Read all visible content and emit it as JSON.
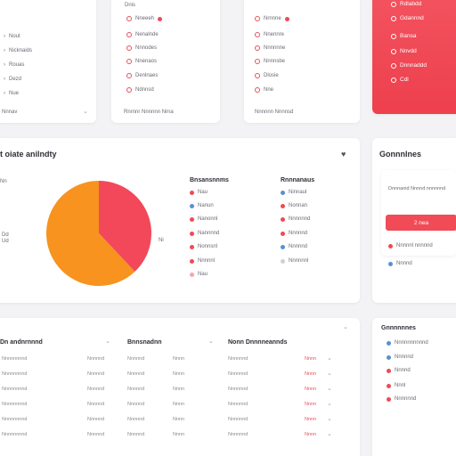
{
  "top_left": {
    "items": [
      "Nout",
      "Nicknaids",
      "Rouas",
      "Dezd",
      "Nue"
    ],
    "footer": "Nnnav"
  },
  "top_mid1": {
    "header": "Dnis",
    "items": [
      "Nneeeh",
      "Nenalnde",
      "Nnnodes",
      "Nnenaos",
      "Denlnaes",
      "Ndnnsd"
    ],
    "footer": "Rnrnnr Nnnnnn Nrna"
  },
  "top_mid2": {
    "items": [
      "Nrnnne",
      "Nnennre",
      "Nnnnnne",
      "Nnnnsbe",
      "Dlosie",
      "Nne"
    ],
    "footer": "Nnnnnn Nnnnsd"
  },
  "top_right": {
    "items": [
      "Rdlabdd",
      "Gdannnd",
      "Bansa",
      "Nnvdd",
      "Dnnnaddd",
      "Cdl"
    ]
  },
  "activity": {
    "title": "t oiate anilndty",
    "side_labels": [
      "Nn",
      "Dd",
      "Ud"
    ],
    "pie_label": "Ni",
    "legend_left_title": "Bnsansnnms",
    "legend_left": [
      "Nau",
      "Nanun",
      "Nanonnl",
      "Nannnnd",
      "Nonnsnl",
      "Nnnnnl",
      "Nau"
    ],
    "legend_right_title": "Rnnnanaus",
    "legend_right": [
      "Ninnaul",
      "Nonnan",
      "Nnnnnnd",
      "Nnnnnd",
      "Nnnnnd",
      "Nnnnnnl"
    ]
  },
  "chart_data": {
    "type": "pie",
    "values": [
      38,
      62
    ],
    "colors": [
      "#f2485a",
      "#f7931e"
    ]
  },
  "connections": {
    "title": "Gonnnlnes",
    "text": "Dnnnanid Nnnnd nnnnnnd",
    "button": "2 nea",
    "items": [
      "Nnnnnl nnnnnd",
      "Nnnnd"
    ]
  },
  "table": {
    "headers": [
      "Dn andnrnnnd",
      "Bnnsnadnn",
      "Nonn Dnnnneannds"
    ],
    "col1": [
      "Nnnnnnnnd",
      "Nnnnnnnnd",
      "Nnnnnnnnd",
      "Nnnnnnnnd",
      "Nnnnnnnnd",
      "Nnnnnnnnd"
    ],
    "col2": [
      "Nnnnnd",
      "Nnnnnd",
      "Nnnnnd",
      "Nnnnnd",
      "Nnnnnd",
      "Nnnnnd"
    ],
    "col3": [
      "Nnnnnd",
      "Nnnnnd",
      "Nnnnnd",
      "Nnnnnd",
      "Nnnnnd",
      "Nnnnnd"
    ],
    "col4": [
      "Nnnn",
      "Nnnn",
      "Nnnn",
      "Nnnn",
      "Nnnn",
      "Nnnn"
    ],
    "col5": [
      "Nnnnnnd",
      "Nnnnnnd",
      "Nnnnnnd",
      "Nnnnnnd",
      "Nnnnnnd",
      "Nnnnnnd"
    ],
    "col6": [
      "Nnnn",
      "Nnnn",
      "Nnnn",
      "Nnnn",
      "Nnnn",
      "Nnnn"
    ]
  },
  "events": {
    "title": "Gnnnnnnes",
    "items": [
      "Nnnnnnnnnnd",
      "Nnnnnd",
      "Nnnnd",
      "Nnnl",
      "Nnnnnnd"
    ]
  }
}
